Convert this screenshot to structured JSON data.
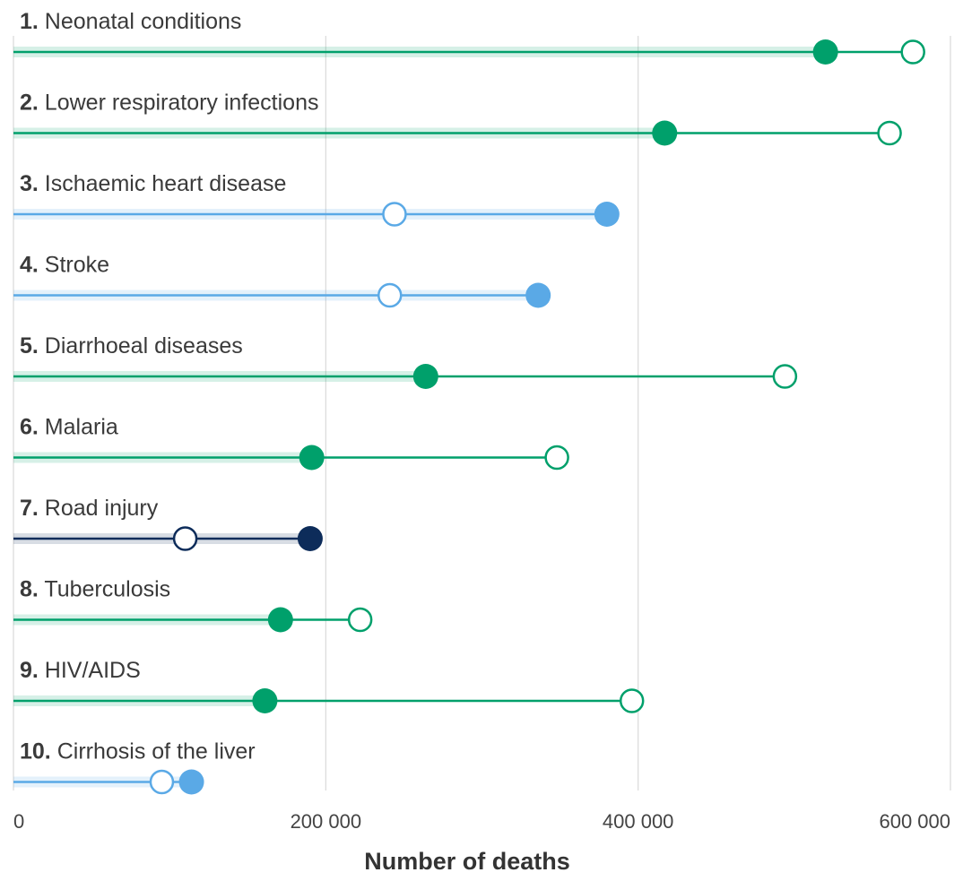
{
  "chart_data": {
    "type": "dumbbell",
    "title": "",
    "xlabel": "Number of deaths",
    "ylabel": "",
    "xlim": [
      0,
      600000
    ],
    "x_ticks": [
      0,
      200000,
      400000,
      600000
    ],
    "x_tick_labels": [
      "0",
      "200 000",
      "400 000",
      "600 000"
    ],
    "grid": "vertical",
    "colors": {
      "green": "#00a06b",
      "light_blue": "#5aa9e6",
      "navy": "#0d2c5a",
      "grid": "#d9d9d9"
    },
    "categories": [
      {
        "rank": "1.",
        "name": "Neonatal conditions",
        "color": "green",
        "filled": 520000,
        "hollow": 576000
      },
      {
        "rank": "2.",
        "name": "Lower respiratory infections",
        "color": "green",
        "filled": 417000,
        "hollow": 561000
      },
      {
        "rank": "3.",
        "name": "Ischaemic heart disease",
        "color": "light_blue",
        "filled": 380000,
        "hollow": 244000
      },
      {
        "rank": "4.",
        "name": "Stroke",
        "color": "light_blue",
        "filled": 336000,
        "hollow": 241000
      },
      {
        "rank": "5.",
        "name": "Diarrhoeal diseases",
        "color": "green",
        "filled": 264000,
        "hollow": 494000
      },
      {
        "rank": "6.",
        "name": "Malaria",
        "color": "green",
        "filled": 191000,
        "hollow": 348000
      },
      {
        "rank": "7.",
        "name": "Road injury",
        "color": "navy",
        "filled": 190000,
        "hollow": 110000
      },
      {
        "rank": "8.",
        "name": "Tuberculosis",
        "color": "green",
        "filled": 171000,
        "hollow": 222000
      },
      {
        "rank": "9.",
        "name": "HIV/AIDS",
        "color": "green",
        "filled": 161000,
        "hollow": 396000
      },
      {
        "rank": "10.",
        "name": "Cirrhosis of the liver",
        "color": "light_blue",
        "filled": 114000,
        "hollow": 95000
      }
    ]
  }
}
